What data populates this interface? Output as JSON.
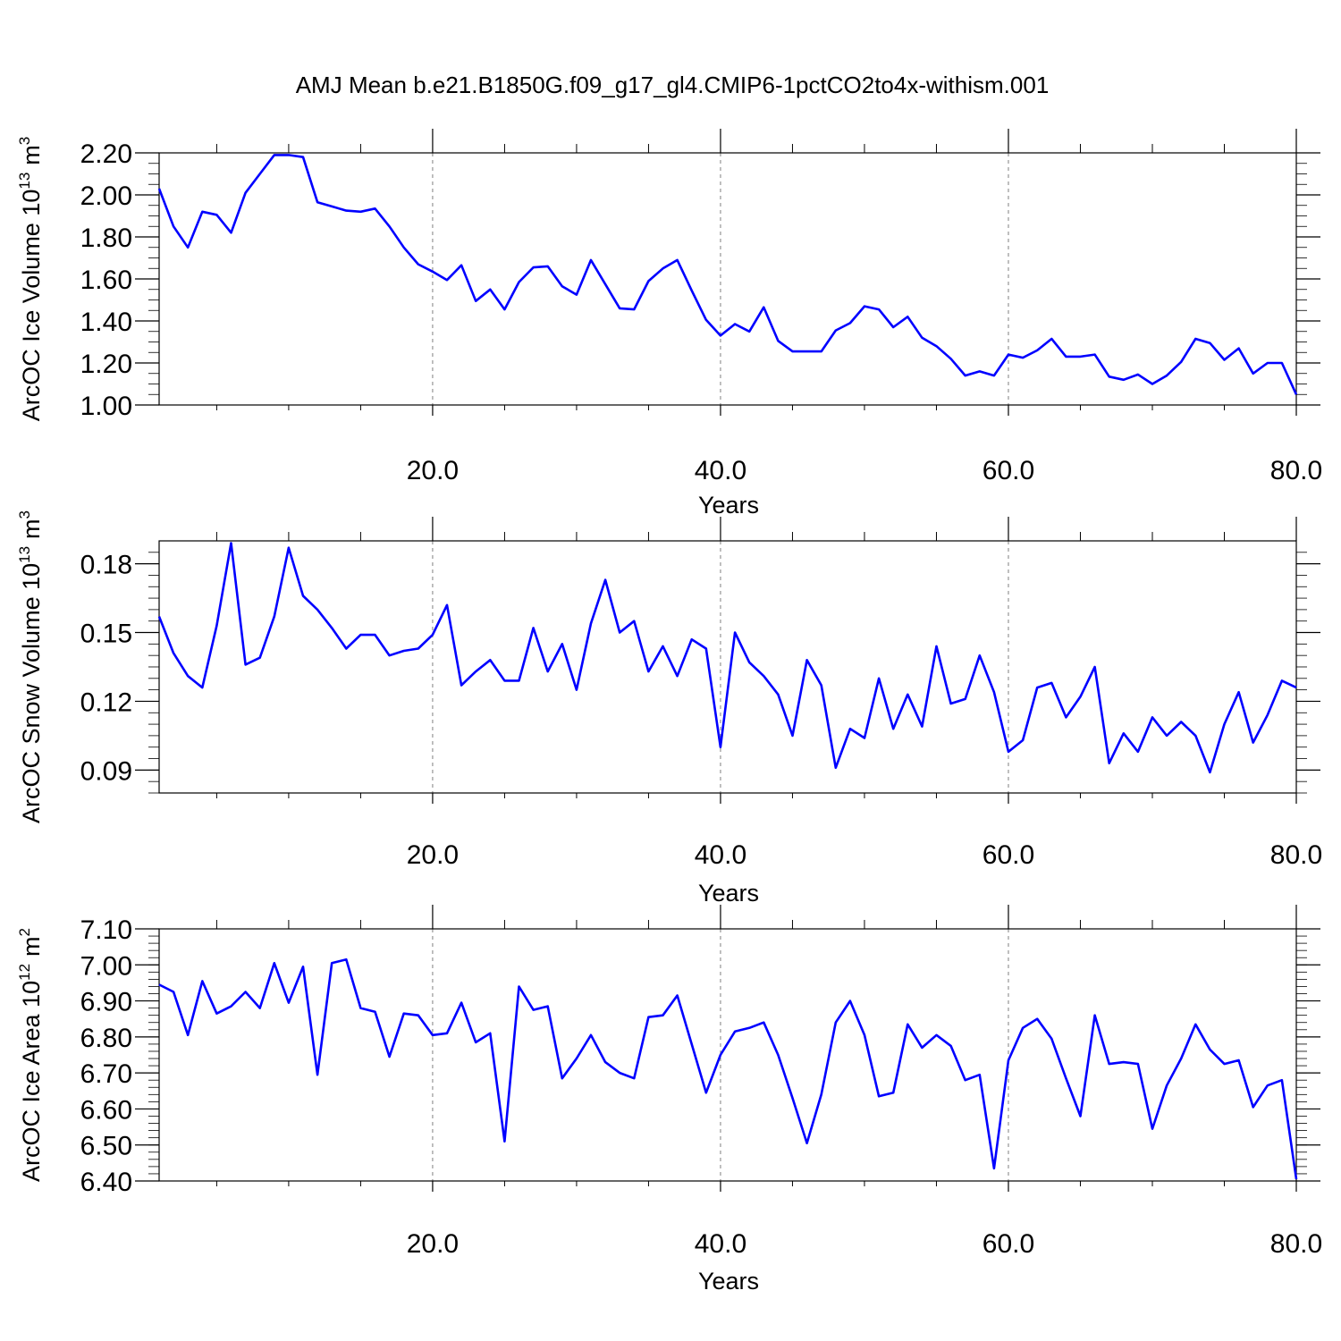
{
  "title": "AMJ Mean b.e21.B1850G.f09_g17_gl4.CMIP6-1pctCO2to4x-withism.001",
  "colors": {
    "series": "#0000ff",
    "axis": "#000000",
    "grid": "#808080"
  },
  "chart_data": [
    {
      "type": "line",
      "ylabel": "ArcOC Ice Volume 10",
      "ylabel_exponent": "13",
      "ylabel_unit": "m",
      "ylabel_unit_exponent": "3",
      "xlabel": "Years",
      "xlim": [
        1,
        80
      ],
      "ylim": [
        1.0,
        2.2
      ],
      "x_ticks": [
        20,
        40,
        60,
        80
      ],
      "x_tick_labels": [
        "20.0",
        "40.0",
        "60.0",
        "80.0"
      ],
      "y_ticks": [
        1.0,
        1.2,
        1.4,
        1.6,
        1.8,
        2.0,
        2.2
      ],
      "y_tick_labels": [
        "1.00",
        "1.20",
        "1.40",
        "1.60",
        "1.80",
        "2.00",
        "2.20"
      ],
      "y_minor_step": 0.05,
      "x_minor_step": 5,
      "grid": "vertical dashed at major x ticks",
      "series": [
        {
          "values": [
            2.03,
            1.85,
            1.75,
            1.92,
            1.905,
            1.82,
            2.01,
            2.1,
            2.19,
            2.19,
            2.18,
            1.965,
            1.945,
            1.925,
            1.92,
            1.935,
            1.85,
            1.75,
            1.67,
            1.635,
            1.595,
            1.665,
            1.495,
            1.55,
            1.455,
            1.585,
            1.655,
            1.66,
            1.565,
            1.525,
            1.69,
            1.575,
            1.46,
            1.455,
            1.59,
            1.65,
            1.69,
            1.545,
            1.405,
            1.33,
            1.385,
            1.35,
            1.465,
            1.305,
            1.255,
            1.255,
            1.255,
            1.355,
            1.39,
            1.47,
            1.455,
            1.37,
            1.42,
            1.32,
            1.28,
            1.22,
            1.14,
            1.16,
            1.14,
            1.24,
            1.225,
            1.26,
            1.315,
            1.23,
            1.23,
            1.24,
            1.135,
            1.12,
            1.145,
            1.1,
            1.14,
            1.205,
            1.315,
            1.295,
            1.215,
            1.27,
            1.15,
            1.2,
            1.2,
            1.05
          ]
        }
      ]
    },
    {
      "type": "line",
      "ylabel": "ArcOC Snow Volume 10",
      "ylabel_exponent": "13",
      "ylabel_unit": "m",
      "ylabel_unit_exponent": "3",
      "xlabel": "Years",
      "xlim": [
        1,
        80
      ],
      "ylim": [
        0.08,
        0.18999
      ],
      "x_ticks": [
        20,
        40,
        60,
        80
      ],
      "x_tick_labels": [
        "20.0",
        "40.0",
        "60.0",
        "80.0"
      ],
      "y_ticks": [
        0.09,
        0.12,
        0.15,
        0.18
      ],
      "y_tick_labels": [
        "0.09",
        "0.12",
        "0.15",
        "0.18"
      ],
      "y_minor_step": 0.005,
      "x_minor_step": 5,
      "grid": "vertical dashed at major x ticks",
      "series": [
        {
          "values": [
            0.157,
            0.141,
            0.131,
            0.126,
            0.153,
            0.189,
            0.136,
            0.139,
            0.157,
            0.187,
            0.166,
            0.16,
            0.152,
            0.143,
            0.149,
            0.149,
            0.14,
            0.142,
            0.143,
            0.149,
            0.162,
            0.127,
            0.133,
            0.138,
            0.129,
            0.129,
            0.152,
            0.133,
            0.145,
            0.125,
            0.154,
            0.173,
            0.15,
            0.155,
            0.133,
            0.144,
            0.131,
            0.147,
            0.143,
            0.1,
            0.15,
            0.137,
            0.131,
            0.123,
            0.105,
            0.138,
            0.127,
            0.091,
            0.108,
            0.104,
            0.13,
            0.108,
            0.123,
            0.109,
            0.144,
            0.119,
            0.121,
            0.14,
            0.124,
            0.098,
            0.103,
            0.126,
            0.128,
            0.113,
            0.122,
            0.135,
            0.093,
            0.106,
            0.098,
            0.113,
            0.105,
            0.111,
            0.105,
            0.089,
            0.11,
            0.124,
            0.102,
            0.114,
            0.129,
            0.126
          ]
        }
      ]
    },
    {
      "type": "line",
      "ylabel": "ArcOC Ice Area 10",
      "ylabel_exponent": "12",
      "ylabel_unit": "m",
      "ylabel_unit_exponent": "2",
      "xlabel": "Years",
      "xlim": [
        1,
        80
      ],
      "ylim": [
        6.4,
        7.1
      ],
      "x_ticks": [
        20,
        40,
        60,
        80
      ],
      "x_tick_labels": [
        "20.0",
        "40.0",
        "60.0",
        "80.0"
      ],
      "y_ticks": [
        6.4,
        6.5,
        6.6,
        6.7,
        6.8,
        6.9,
        7.0,
        7.1
      ],
      "y_tick_labels": [
        "6.40",
        "6.50",
        "6.60",
        "6.70",
        "6.80",
        "6.90",
        "7.00",
        "7.10"
      ],
      "y_minor_step": 0.02,
      "x_minor_step": 5,
      "grid": "vertical dashed at major x ticks",
      "series": [
        {
          "values": [
            6.945,
            6.925,
            6.805,
            6.955,
            6.865,
            6.885,
            6.925,
            6.88,
            7.005,
            6.895,
            6.995,
            6.695,
            7.005,
            7.015,
            6.88,
            6.87,
            6.745,
            6.865,
            6.86,
            6.805,
            6.81,
            6.895,
            6.785,
            6.81,
            6.51,
            6.94,
            6.875,
            6.885,
            6.685,
            6.74,
            6.805,
            6.73,
            6.7,
            6.685,
            6.855,
            6.86,
            6.915,
            6.78,
            6.645,
            6.75,
            6.815,
            6.825,
            6.84,
            6.75,
            6.63,
            6.505,
            6.64,
            6.84,
            6.9,
            6.805,
            6.635,
            6.645,
            6.835,
            6.77,
            6.805,
            6.775,
            6.68,
            6.695,
            6.435,
            6.735,
            6.825,
            6.85,
            6.795,
            6.685,
            6.58,
            6.86,
            6.725,
            6.73,
            6.725,
            6.545,
            6.665,
            6.74,
            6.835,
            6.765,
            6.725,
            6.735,
            6.605,
            6.665,
            6.68,
            6.405
          ]
        }
      ]
    }
  ]
}
